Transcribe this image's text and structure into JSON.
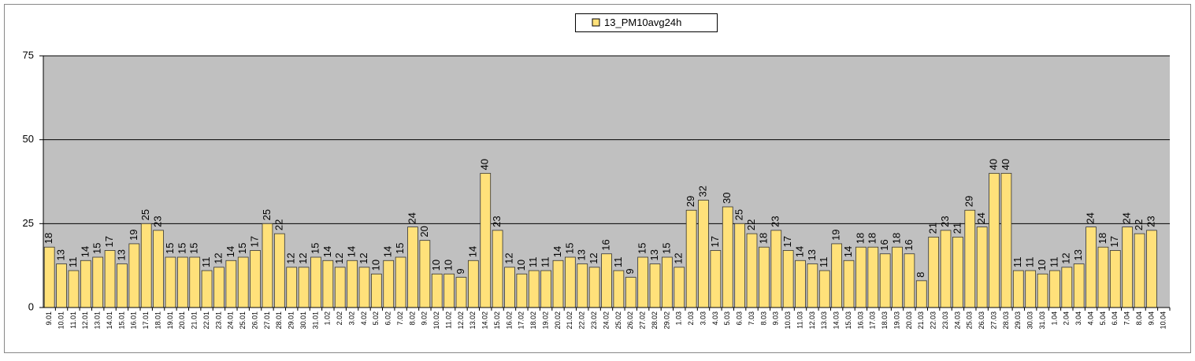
{
  "chart_data": {
    "type": "bar",
    "categories": [
      "9.01",
      "10.01",
      "11.01",
      "12.01",
      "13.01",
      "14.01",
      "15.01",
      "16.01",
      "17.01",
      "18.01",
      "19.01",
      "20.01",
      "21.01",
      "22.01",
      "23.01",
      "24.01",
      "25.01",
      "26.01",
      "27.01",
      "28.01",
      "29.01",
      "30.01",
      "31.01",
      "1.02",
      "2.02",
      "3.02",
      "4.02",
      "5.02",
      "6.02",
      "7.02",
      "8.02",
      "9.02",
      "10.02",
      "11.02",
      "12.02",
      "13.02",
      "14.02",
      "15.02",
      "16.02",
      "17.02",
      "18.02",
      "19.02",
      "20.02",
      "21.02",
      "22.02",
      "23.02",
      "24.02",
      "25.02",
      "26.02",
      "27.02",
      "28.02",
      "29.02",
      "1.03",
      "2.03",
      "3.03",
      "4.03",
      "5.03",
      "6.03",
      "7.03",
      "8.03",
      "9.03",
      "10.03",
      "11.03",
      "12.03",
      "13.03",
      "14.03",
      "15.03",
      "16.03",
      "17.03",
      "18.03",
      "19.03",
      "20.03",
      "21.03",
      "22.03",
      "23.03",
      "24.03",
      "25.03",
      "26.03",
      "27.03",
      "28.03",
      "29.03",
      "30.03",
      "31.03",
      "1.04",
      "2.04",
      "3.04",
      "4.04",
      "5.04",
      "6.04",
      "7.04",
      "8.04",
      "9.04",
      "10.04"
    ],
    "series": [
      {
        "name": "13_PM10avg24h",
        "color": "#ffe17a",
        "values": [
          18,
          13,
          11,
          14,
          15,
          17,
          13,
          19,
          25,
          23,
          15,
          15,
          15,
          11,
          12,
          14,
          15,
          17,
          25,
          22,
          12,
          12,
          15,
          14,
          12,
          14,
          12,
          10,
          14,
          15,
          24,
          20,
          10,
          10,
          9,
          14,
          40,
          23,
          12,
          10,
          11,
          11,
          14,
          15,
          13,
          12,
          16,
          11,
          9,
          15,
          13,
          15,
          12,
          29,
          32,
          17,
          30,
          25,
          22,
          18,
          23,
          17,
          14,
          13,
          11,
          19,
          14,
          18,
          18,
          16,
          18,
          16,
          8,
          21,
          23,
          21,
          29,
          24,
          40,
          40,
          11,
          11,
          10,
          11,
          12,
          13,
          24,
          18,
          17,
          24,
          22,
          23,
          null
        ]
      }
    ],
    "ylim": [
      0,
      75
    ],
    "yticks": [
      0,
      25,
      50,
      75
    ],
    "grid": true,
    "plot_background": "#c0c0c0"
  }
}
